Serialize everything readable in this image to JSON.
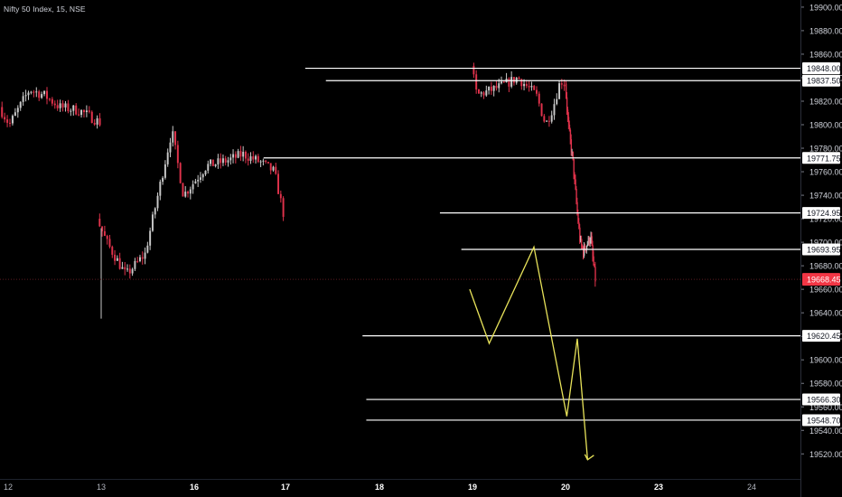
{
  "chart_data": {
    "type": "line",
    "title": "Nifty 50 Index, 15, NSE",
    "x_ticks": [
      "12",
      "13",
      "16",
      "17",
      "18",
      "19",
      "20",
      "23",
      "24"
    ],
    "x_ticks_bold": [
      "16",
      "17",
      "18",
      "19",
      "20",
      "23"
    ],
    "y_ticks": [
      19900,
      19880,
      19860,
      19840,
      19820,
      19800,
      19780,
      19760,
      19740,
      19720,
      19700,
      19680,
      19660,
      19640,
      19620,
      19600,
      19580,
      19560,
      19540,
      19520
    ],
    "y_tick_labels": [
      "19900.00",
      "19880.00",
      "19860.00",
      "19840.00",
      "19820.00",
      "19800.00",
      "19780.00",
      "19760.00",
      "19740.00",
      "19720.00",
      "19700.00",
      "19680.00",
      "19660.00",
      "19640.00",
      "19620.00",
      "19600.00",
      "19580.00",
      "19560.00",
      "19540.00",
      "19520.00"
    ],
    "ylim": [
      19511,
      19903
    ],
    "grid": false,
    "current_price": {
      "value": 19668.45,
      "label": "19668.45",
      "color": "#f23645"
    },
    "levels": [
      {
        "value": 19848.0,
        "label": "19848.00",
        "from_day": 17.21
      },
      {
        "value": 19837.5,
        "label": "19837.50",
        "from_day": 17.43
      },
      {
        "value": 19771.75,
        "label": "19771.75",
        "from_day": 16.76
      },
      {
        "value": 19724.95,
        "label": "19724.95",
        "from_day": 18.65
      },
      {
        "value": 19693.95,
        "label": "19693.95",
        "from_day": 18.88
      },
      {
        "value": 19620.45,
        "label": "19620.45",
        "from_day": 15.82
      },
      {
        "value": 19566.3,
        "label": "19566.30",
        "from_day": 15.86
      },
      {
        "value": 19548.7,
        "label": "19548.70",
        "from_day": 15.86
      }
    ],
    "projection_path": {
      "color": "#e8e35a",
      "points": [
        [
          18.97,
          19660
        ],
        [
          19.18,
          19614
        ],
        [
          19.66,
          19696
        ],
        [
          20.04,
          19552
        ],
        [
          20.38,
          19618
        ],
        [
          20.71,
          19515
        ]
      ]
    },
    "candles": {
      "up_color": "#c8c8c8",
      "down_color": "#e0324b",
      "segments": [
        {
          "day_start": 11.92,
          "day_end": 13.0,
          "steps": 38,
          "open": 19815,
          "waypoints": [
            [
              0,
              19815
            ],
            [
              0.1,
              19800
            ],
            [
              0.3,
              19830
            ],
            [
              0.45,
              19825
            ],
            [
              0.6,
              19815
            ],
            [
              0.8,
              19812
            ],
            [
              1,
              19802
            ]
          ]
        },
        {
          "day_start": 12.97,
          "day_end": 14.0,
          "steps": 38,
          "open": 19720,
          "waypoints": [
            [
              0,
              19720
            ],
            [
              0.1,
              19700
            ],
            [
              0.3,
              19672
            ],
            [
              0.5,
              19690
            ],
            [
              0.7,
              19765
            ],
            [
              0.78,
              19795
            ],
            [
              0.9,
              19740
            ],
            [
              1,
              19750
            ]
          ]
        },
        {
          "day_start": 14.0,
          "day_end": 14.99,
          "steps": 36,
          "open": 19750,
          "waypoints": [
            [
              0,
              19750
            ],
            [
              0.15,
              19765
            ],
            [
              0.4,
              19770
            ],
            [
              0.55,
              19775
            ],
            [
              0.75,
              19768
            ],
            [
              0.9,
              19760
            ],
            [
              1,
              19725
            ]
          ]
        },
        {
          "day_start": 17.0,
          "day_end": 18.0,
          "steps": 37,
          "open": 19850,
          "waypoints": [
            [
              0,
              19850
            ],
            [
              0.06,
              19825
            ],
            [
              0.3,
              19832
            ],
            [
              0.5,
              19840
            ],
            [
              0.7,
              19825
            ],
            [
              0.8,
              19800
            ],
            [
              0.88,
              19815
            ],
            [
              0.96,
              19838
            ],
            [
              1,
              19835
            ]
          ]
        },
        {
          "day_start": 18.0,
          "day_end": 18.97,
          "steps": 35,
          "open": 19835,
          "waypoints": [
            [
              0,
              19835
            ],
            [
              0.1,
              19800
            ],
            [
              0.25,
              19770
            ],
            [
              0.4,
              19725
            ],
            [
              0.5,
              19700
            ],
            [
              0.6,
              19692
            ],
            [
              0.75,
              19700
            ],
            [
              0.85,
              19705
            ],
            [
              0.9,
              19690
            ],
            [
              1,
              19668.45
            ]
          ]
        }
      ]
    }
  }
}
